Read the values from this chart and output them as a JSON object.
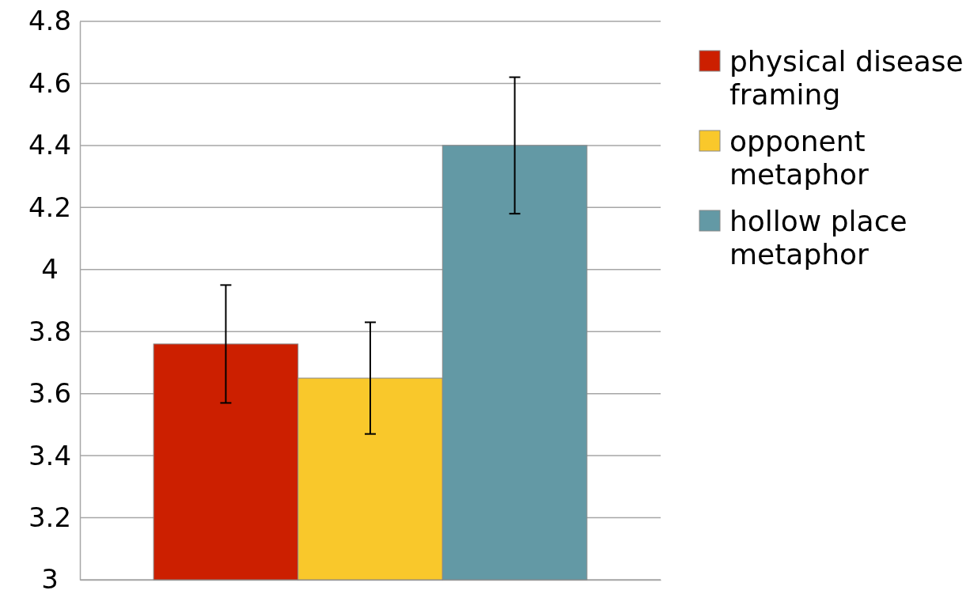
{
  "chart_data": {
    "type": "bar",
    "categories": [
      null
    ],
    "series": [
      {
        "name": "physical disease framing",
        "color": "#cc1f00",
        "values": [
          3.76
        ],
        "errors": [
          [
            3.57,
            3.95
          ]
        ]
      },
      {
        "name": "opponent metaphor",
        "color": "#f9c82b",
        "values": [
          3.65
        ],
        "errors": [
          [
            3.47,
            3.83
          ]
        ]
      },
      {
        "name": "hollow place metaphor",
        "color": "#6399a5",
        "values": [
          4.4
        ],
        "errors": [
          [
            4.18,
            4.62
          ]
        ]
      }
    ],
    "ylim": [
      3,
      4.8
    ],
    "yticks": [
      3,
      3.2,
      3.4,
      3.6,
      3.8,
      4,
      4.2,
      4.4,
      4.6,
      4.8
    ],
    "grid": "y",
    "legend": "right",
    "tick_labels": "y"
  }
}
